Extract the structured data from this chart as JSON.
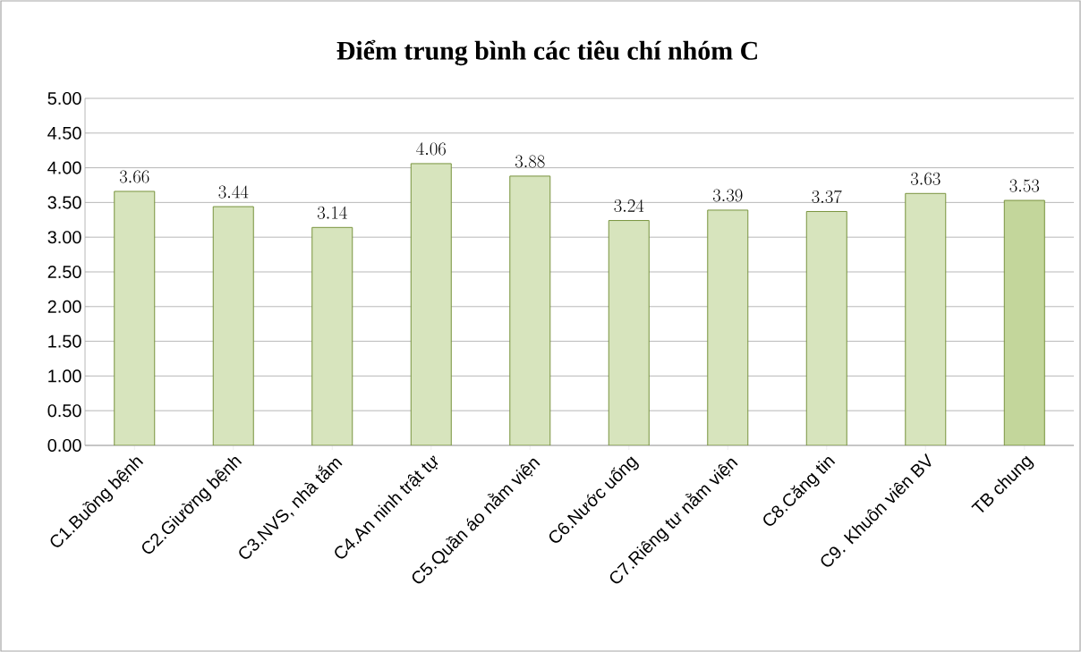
{
  "chart_data": {
    "type": "bar",
    "title": "Điểm trung bình các tiêu chí nhóm C",
    "categories": [
      "C1.Buồng bệnh",
      "C2.Giường bệnh",
      "C3.NVS, nhà tắm",
      "C4.An ninh trật tự",
      "C5.Quần áo nằm viện",
      "C6.Nước uống",
      "C7.Riêng tư nằm viện",
      "C8.Căng tin",
      "C9. Khuôn viên BV",
      "TB chung"
    ],
    "values": [
      3.66,
      3.44,
      3.14,
      4.06,
      3.88,
      3.24,
      3.39,
      3.37,
      3.63,
      3.53
    ],
    "colors": [
      "#d7e4bd",
      "#d7e4bd",
      "#d7e4bd",
      "#d7e4bd",
      "#d7e4bd",
      "#d7e4bd",
      "#d7e4bd",
      "#d7e4bd",
      "#d7e4bd",
      "#c3d69b"
    ],
    "ylim": [
      0,
      5
    ],
    "yticks": [
      {
        "value": 0,
        "label": "0.00"
      },
      {
        "value": 0.5,
        "label": "0.50"
      },
      {
        "value": 1,
        "label": "1.00"
      },
      {
        "value": 1.5,
        "label": "1.50"
      },
      {
        "value": 2,
        "label": "2.00"
      },
      {
        "value": 2.5,
        "label": "2.50"
      },
      {
        "value": 3,
        "label": "3.00"
      },
      {
        "value": 3.5,
        "label": "3.50"
      },
      {
        "value": 4,
        "label": "4.00"
      },
      {
        "value": 4.5,
        "label": "4.50"
      },
      {
        "value": 5,
        "label": "5.00"
      }
    ],
    "grid": "y",
    "data_labels": true
  }
}
